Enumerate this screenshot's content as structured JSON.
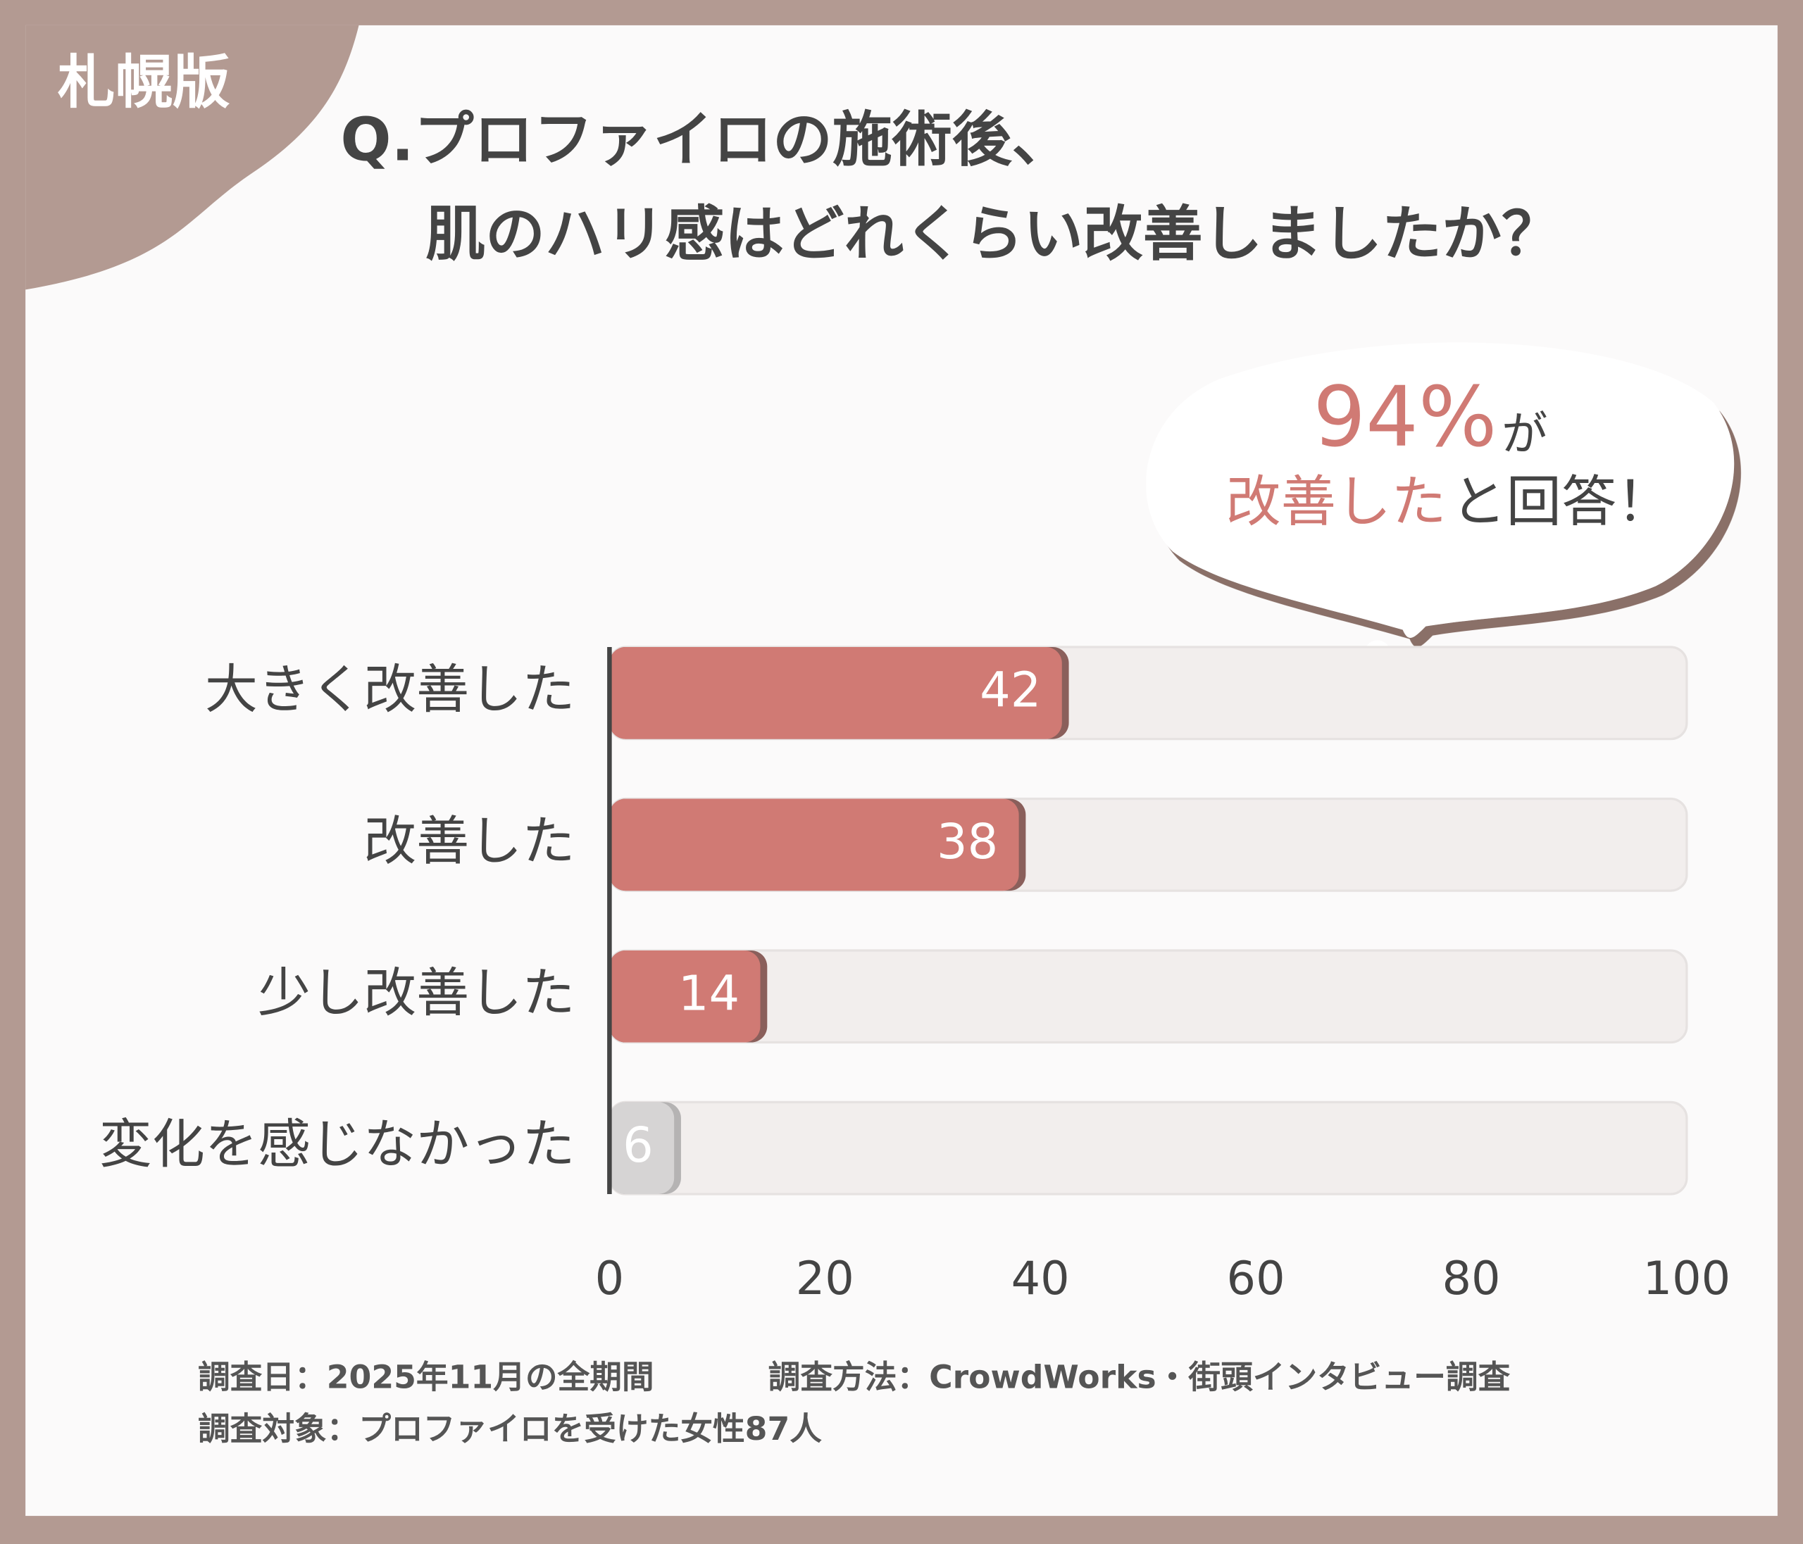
{
  "badge": "札幌版",
  "chart_data": {
    "type": "bar",
    "orientation": "horizontal",
    "title": [
      "Q.プロファイロの施術後、",
      "肌のハリ感はどれくらい改善しましたか？"
    ],
    "categories": [
      "大きく改善した",
      "改善した",
      "少し改善した",
      "変化を感じなかった"
    ],
    "values": [
      42,
      38,
      14,
      6
    ],
    "colors": [
      "#d07a74",
      "#d07a74",
      "#d07a74",
      "#d6d4d4"
    ],
    "xlim": [
      0,
      100
    ],
    "xticks": [
      0,
      20,
      40,
      60,
      80,
      100
    ],
    "annotation": {
      "highlight": "94%",
      "suffix": "が",
      "line2_highlight": "改善した",
      "line2_rest": "と回答！"
    }
  },
  "notes": [
    "調査日：2025年11月の全期間",
    "調査方法：CrowdWorks・街頭インタビュー調査",
    "調査対象：プロファイロを受けた女性87人"
  ]
}
